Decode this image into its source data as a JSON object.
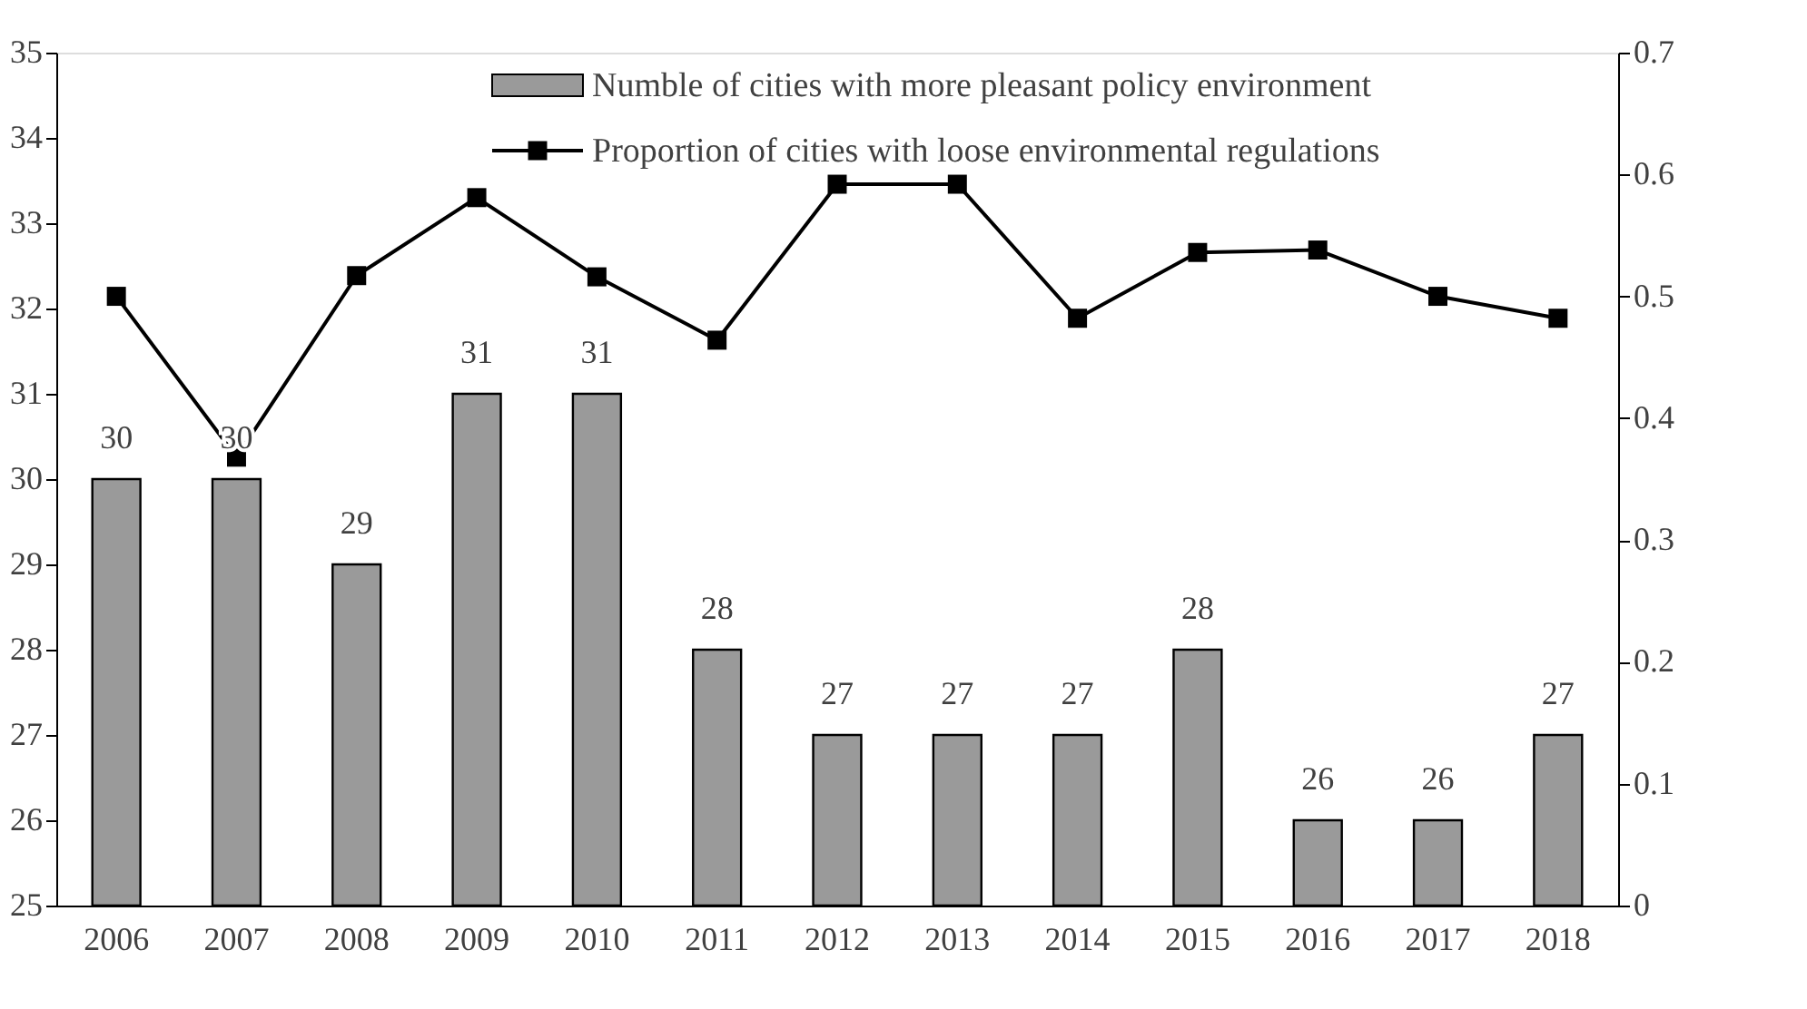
{
  "chart_data": {
    "type": "bar",
    "categories": [
      "2006",
      "2007",
      "2008",
      "2009",
      "2010",
      "2011",
      "2012",
      "2013",
      "2014",
      "2015",
      "2016",
      "2017",
      "2018"
    ],
    "series": [
      {
        "name": "Numble of cities with more pleasant policy environment",
        "color": "#9a9a9a",
        "values": [
          30,
          30,
          29,
          31,
          31,
          28,
          27,
          27,
          27,
          28,
          26,
          26,
          27
        ],
        "value_labels": [
          "30",
          "30",
          "29",
          "31",
          "31",
          "28",
          "27",
          "27",
          "27",
          "28",
          "26",
          "26",
          "27"
        ]
      },
      {
        "name": "Proportion of cities with loose environmental regulations",
        "type": "line",
        "axis": "y2",
        "color": "#000000",
        "marker": "square",
        "values": [
          0.5,
          0.368,
          0.517,
          0.581,
          0.516,
          0.464,
          0.592,
          0.592,
          0.482,
          0.536,
          0.538,
          0.5,
          0.482
        ]
      }
    ],
    "ylim": [
      25,
      35
    ],
    "yticks": [
      25,
      26,
      27,
      28,
      29,
      30,
      31,
      32,
      33,
      34,
      35
    ],
    "y2lim": [
      0,
      0.7
    ],
    "y2ticks": [
      0,
      0.1,
      0.2,
      0.3,
      0.4,
      0.5,
      0.6,
      0.7
    ],
    "grid": false,
    "legend": "top"
  }
}
